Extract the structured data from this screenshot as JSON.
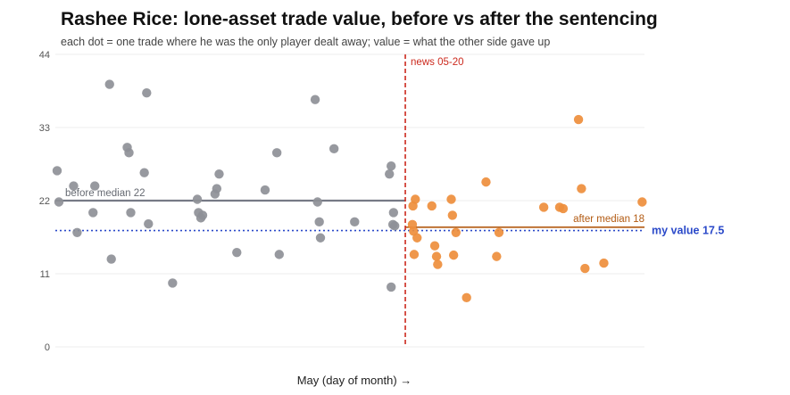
{
  "chart_data": {
    "type": "scatter",
    "title": "Rashee Rice: lone-asset trade value, before vs after the sentencing",
    "subtitle": "each dot = one trade where he was the only player dealt away; value = what the other side gave up",
    "xlabel": "May (day of month) →",
    "ylabel": "",
    "ylim": [
      0,
      44
    ],
    "yticks": [
      0,
      11,
      22,
      33,
      44
    ],
    "xlim": [
      0,
      100
    ],
    "grid": true,
    "colors": {
      "before": "#8e9097",
      "after": "#ee8e3c",
      "median_before": "#767a86",
      "median_after": "#b25a12",
      "news": "#cc2a1e",
      "my_value": "#2a49c9"
    },
    "series": [
      {
        "key": "before",
        "points": [
          [
            0.3,
            26.5
          ],
          [
            0.6,
            21.8
          ],
          [
            3.1,
            24.2
          ],
          [
            3.7,
            17.2
          ],
          [
            6.4,
            20.2
          ],
          [
            6.7,
            24.2
          ],
          [
            9.2,
            39.5
          ],
          [
            9.5,
            13.2
          ],
          [
            12.2,
            30.0
          ],
          [
            12.5,
            29.2
          ],
          [
            12.8,
            20.2
          ],
          [
            15.1,
            26.2
          ],
          [
            15.5,
            38.2
          ],
          [
            15.8,
            18.5
          ],
          [
            19.9,
            9.6
          ],
          [
            24.1,
            22.2
          ],
          [
            24.3,
            20.2
          ],
          [
            24.7,
            19.4
          ],
          [
            25.0,
            19.8
          ],
          [
            27.1,
            23.0
          ],
          [
            27.4,
            23.8
          ],
          [
            27.8,
            26.0
          ],
          [
            30.8,
            14.2
          ],
          [
            35.6,
            23.6
          ],
          [
            37.6,
            29.2
          ],
          [
            38.0,
            13.9
          ],
          [
            44.1,
            37.2
          ],
          [
            44.5,
            21.8
          ],
          [
            44.8,
            18.8
          ],
          [
            45.0,
            16.4
          ],
          [
            47.3,
            29.8
          ],
          [
            50.8,
            18.8
          ],
          [
            56.7,
            26.0
          ],
          [
            57.0,
            27.2
          ],
          [
            57.0,
            9.0
          ],
          [
            57.3,
            18.4
          ],
          [
            57.4,
            20.2
          ],
          [
            57.6,
            18.2
          ]
        ]
      },
      {
        "key": "after",
        "points": [
          [
            60.6,
            18.4
          ],
          [
            60.7,
            21.2
          ],
          [
            60.8,
            17.4
          ],
          [
            60.9,
            13.9
          ],
          [
            61.1,
            22.2
          ],
          [
            61.4,
            16.4
          ],
          [
            63.9,
            21.2
          ],
          [
            64.4,
            15.2
          ],
          [
            64.7,
            13.6
          ],
          [
            64.9,
            12.4
          ],
          [
            67.2,
            22.2
          ],
          [
            67.4,
            19.8
          ],
          [
            67.6,
            13.8
          ],
          [
            68.0,
            17.2
          ],
          [
            69.8,
            7.4
          ],
          [
            73.1,
            24.8
          ],
          [
            74.9,
            13.6
          ],
          [
            75.3,
            17.2
          ],
          [
            82.9,
            21.0
          ],
          [
            85.6,
            21.0
          ],
          [
            86.2,
            20.8
          ],
          [
            88.8,
            34.2
          ],
          [
            89.3,
            23.8
          ],
          [
            89.9,
            11.8
          ],
          [
            93.1,
            12.6
          ],
          [
            99.6,
            21.8
          ]
        ]
      }
    ],
    "reference_lines": [
      {
        "type": "h",
        "key": "before",
        "y": 22,
        "x_end": 59.4,
        "label": "before median 22"
      },
      {
        "type": "h",
        "key": "after",
        "y": 18,
        "x_start": 59.4,
        "x_end": 100,
        "label": "after median 18"
      },
      {
        "type": "h",
        "key": "my_value",
        "y": 17.5,
        "label": "my value 17.5"
      },
      {
        "type": "v",
        "key": "news",
        "x": 59.4,
        "label": "news 05-20"
      }
    ]
  }
}
